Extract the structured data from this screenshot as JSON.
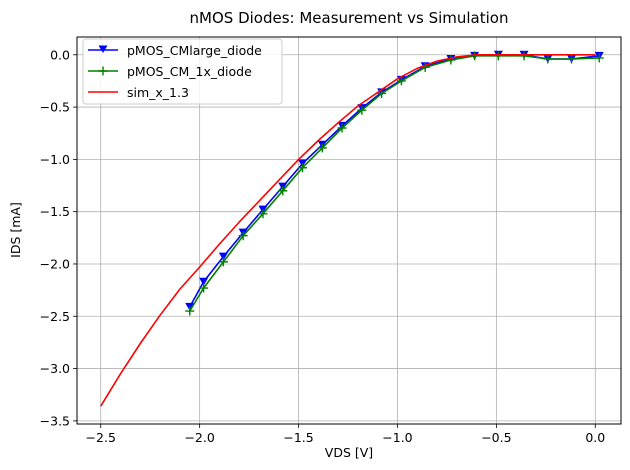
{
  "chart_data": {
    "type": "line",
    "title": "nMOS Diodes: Measurement vs Simulation",
    "xlabel": "VDS [V]",
    "ylabel": "IDS [mA]",
    "xlim": [
      -2.62,
      0.13
    ],
    "ylim": [
      -3.53,
      0.17
    ],
    "x_ticks": [
      -2.5,
      -2.0,
      -1.5,
      -1.0,
      -0.5,
      0.0
    ],
    "x_tick_labels": [
      "−2.5",
      "−2.0",
      "−1.5",
      "−1.0",
      "−0.5",
      "0.0"
    ],
    "y_ticks": [
      0.0,
      -0.5,
      -1.0,
      -1.5,
      -2.0,
      -2.5,
      -3.0,
      -3.5
    ],
    "y_tick_labels": [
      "0.0",
      "−0.5",
      "−1.0",
      "−1.5",
      "−2.0",
      "−2.5",
      "−3.0",
      "−3.5"
    ],
    "grid": true,
    "legend_position": "top-left",
    "series": [
      {
        "name": "pMOS_CMlarge_diode",
        "color": "#0000ff",
        "marker": "triangle-down",
        "x": [
          -2.05,
          -1.98,
          -1.88,
          -1.78,
          -1.68,
          -1.58,
          -1.48,
          -1.38,
          -1.28,
          -1.18,
          -1.08,
          -0.98,
          -0.86,
          -0.73,
          -0.61,
          -0.49,
          -0.36,
          -0.24,
          -0.12,
          0.02
        ],
        "y": [
          -2.41,
          -2.17,
          -1.93,
          -1.7,
          -1.48,
          -1.26,
          -1.04,
          -0.86,
          -0.68,
          -0.51,
          -0.36,
          -0.24,
          -0.11,
          -0.04,
          -0.01,
          0.0,
          0.0,
          -0.04,
          -0.04,
          -0.01
        ]
      },
      {
        "name": "pMOS_CM_1x_diode",
        "color": "#008000",
        "marker": "plus",
        "x": [
          -2.05,
          -1.98,
          -1.88,
          -1.78,
          -1.68,
          -1.58,
          -1.48,
          -1.38,
          -1.28,
          -1.18,
          -1.08,
          -0.98,
          -0.86,
          -0.73,
          -0.61,
          -0.49,
          -0.36,
          -0.24,
          -0.12,
          0.02
        ],
        "y": [
          -2.45,
          -2.23,
          -1.98,
          -1.73,
          -1.52,
          -1.3,
          -1.08,
          -0.89,
          -0.7,
          -0.53,
          -0.37,
          -0.25,
          -0.12,
          -0.05,
          -0.01,
          -0.01,
          -0.01,
          -0.04,
          -0.04,
          -0.03
        ]
      },
      {
        "name": "sim_x_1.3",
        "color": "#ff0000",
        "marker": "none",
        "x": [
          -2.5,
          -2.4,
          -2.3,
          -2.2,
          -2.1,
          -2.0,
          -1.9,
          -1.8,
          -1.7,
          -1.6,
          -1.5,
          -1.4,
          -1.3,
          -1.2,
          -1.1,
          -1.0,
          -0.9,
          -0.8,
          -0.7,
          -0.6,
          -0.5,
          -0.4,
          -0.3,
          -0.2,
          -0.1,
          0.0
        ],
        "y": [
          -3.36,
          -3.05,
          -2.76,
          -2.49,
          -2.24,
          -2.03,
          -1.81,
          -1.6,
          -1.4,
          -1.2,
          -1.0,
          -0.82,
          -0.65,
          -0.49,
          -0.36,
          -0.23,
          -0.13,
          -0.06,
          -0.02,
          0.0,
          0.0,
          0.0,
          0.0,
          0.0,
          0.0,
          0.0
        ]
      }
    ]
  }
}
